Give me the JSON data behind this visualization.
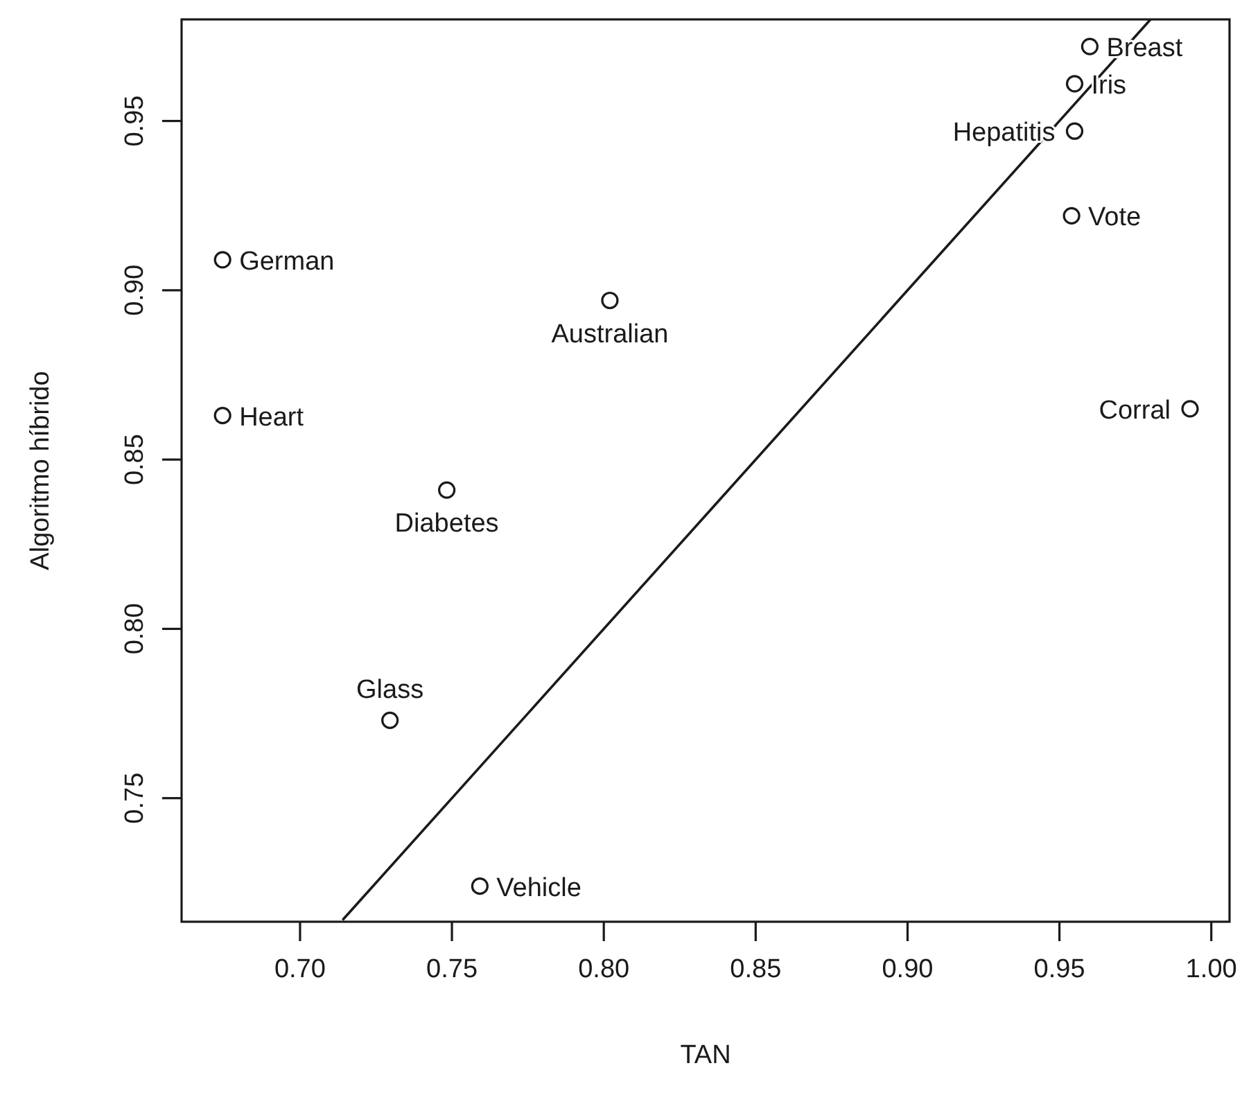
{
  "chart_data": {
    "type": "scatter",
    "xlabel": "TAN",
    "ylabel": "Algoritmo híbrido",
    "xlim": [
      0.661,
      1.006
    ],
    "ylim": [
      0.7135,
      0.98
    ],
    "xticks": [
      {
        "value": 0.7,
        "label": "0.70"
      },
      0.75,
      {
        "value": 0.8,
        "label": "0.80"
      },
      0.85,
      {
        "value": 0.9,
        "label": "0.90"
      },
      0.95,
      {
        "value": 1.0,
        "label": "1.00"
      }
    ],
    "yticks": [
      0.75,
      {
        "value": 0.8,
        "label": "0.80"
      },
      0.85,
      {
        "value": 0.9,
        "label": "0.90"
      },
      0.95
    ],
    "marker": "circle",
    "grid": false,
    "series": [
      {
        "color": "#1a1a1a",
        "x": [
          0.6745,
          0.6745,
          0.7296,
          0.7483,
          0.7592,
          0.802,
          0.96,
          0.955,
          0.955,
          0.954,
          0.993
        ],
        "values": [
          0.909,
          0.863,
          0.773,
          0.841,
          0.724,
          0.897,
          0.972,
          0.961,
          0.947,
          0.922,
          0.865
        ]
      },
      {
        "type": "line",
        "color": "#1a1a1a",
        "marker": "none",
        "x": [
          0.714,
          0.98
        ],
        "values": [
          0.714,
          0.98
        ]
      }
    ],
    "annotations": [
      {
        "text": "German",
        "x": 0.6745,
        "y": 0.909
      },
      {
        "text": "Heart",
        "x": 0.6745,
        "y": 0.863
      },
      {
        "text": "Glass",
        "x": 0.7296,
        "y": 0.773
      },
      {
        "text": "Diabetes",
        "x": 0.7483,
        "y": 0.841
      },
      {
        "text": "Vehicle",
        "x": 0.7592,
        "y": 0.724
      },
      {
        "text": "Australian",
        "x": 0.802,
        "y": 0.897
      },
      {
        "text": "Breast",
        "x": 0.96,
        "y": 0.972
      },
      {
        "text": "Iris",
        "x": 0.955,
        "y": 0.961
      },
      {
        "text": "Hepatitis",
        "x": 0.955,
        "y": 0.947
      },
      {
        "text": "Vote",
        "x": 0.954,
        "y": 0.922
      },
      {
        "text": "Corral",
        "x": 0.993,
        "y": 0.865
      }
    ]
  }
}
